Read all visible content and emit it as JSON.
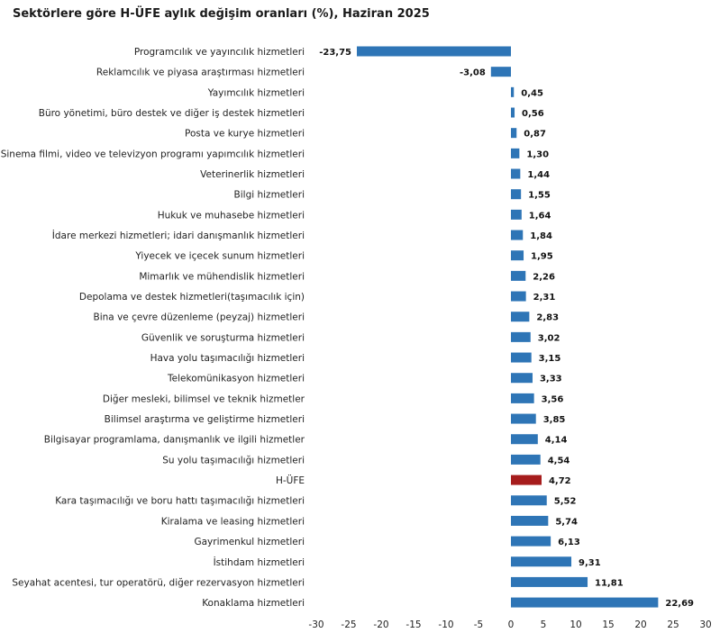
{
  "chart_data": {
    "type": "bar",
    "orientation": "horizontal",
    "title": "Sektörlere göre H-ÜFE aylık değişim oranları (%), Haziran 2025",
    "categories": [
      "Programcılık ve yayıncılık hizmetleri",
      "Reklamcılık ve piyasa araştırması hizmetleri",
      "Yayımcılık hizmetleri",
      "Büro yönetimi, büro destek ve diğer iş destek hizmetleri",
      "Posta ve kurye hizmetleri",
      "Sinema filmi, video ve televizyon programı yapımcılık hizmetleri",
      "Veterinerlik hizmetleri",
      "Bilgi hizmetleri",
      "Hukuk ve muhasebe hizmetleri",
      "İdare merkezi hizmetleri; idari danışmanlık hizmetleri",
      "Yiyecek ve içecek sunum hizmetleri",
      "Mimarlık ve mühendislik hizmetleri",
      "Depolama ve destek hizmetleri(taşımacılık için)",
      "Bina ve çevre düzenleme (peyzaj) hizmetleri",
      "Güvenlik ve soruşturma hizmetleri",
      "Hava yolu taşımacılığı hizmetleri",
      "Telekomünikasyon hizmetleri",
      "Diğer mesleki, bilimsel ve teknik hizmetler",
      "Bilimsel araştırma ve geliştirme hizmetleri",
      "Bilgisayar programlama, danışmanlık ve ilgili hizmetler",
      "Su yolu taşımacılığı hizmetleri",
      "H-ÜFE",
      "Kara taşımacılığı ve boru hattı taşımacılığı hizmetleri",
      "Kiralama ve leasing hizmetleri",
      "Gayrimenkul hizmetleri",
      "İstihdam hizmetleri",
      "Seyahat acentesi, tur operatörü, diğer rezervasyon hizmetleri",
      "Konaklama hizmetleri"
    ],
    "values": [
      -23.75,
      -3.08,
      0.45,
      0.56,
      0.87,
      1.3,
      1.44,
      1.55,
      1.64,
      1.84,
      1.95,
      2.26,
      2.31,
      2.83,
      3.02,
      3.15,
      3.33,
      3.56,
      3.85,
      4.14,
      4.54,
      4.72,
      5.52,
      5.74,
      6.13,
      9.31,
      11.81,
      22.69
    ],
    "value_labels": [
      "-23,75",
      "-3,08",
      "0,45",
      "0,56",
      "0,87",
      "1,30",
      "1,44",
      "1,55",
      "1,64",
      "1,84",
      "1,95",
      "2,26",
      "2,31",
      "2,83",
      "3,02",
      "3,15",
      "3,33",
      "3,56",
      "3,85",
      "4,14",
      "4,54",
      "4,72",
      "5,52",
      "5,74",
      "6,13",
      "9,31",
      "11,81",
      "22,69"
    ],
    "highlight_category": "H-ÜFE",
    "xlim": [
      -30,
      30
    ],
    "xticks": [
      -30,
      -25,
      -20,
      -15,
      -10,
      -5,
      0,
      5,
      10,
      15,
      20,
      25,
      30
    ],
    "grid": false,
    "legend": "none",
    "colors": {
      "bar": "#2e75b6",
      "highlight": "#a61c1c"
    }
  }
}
